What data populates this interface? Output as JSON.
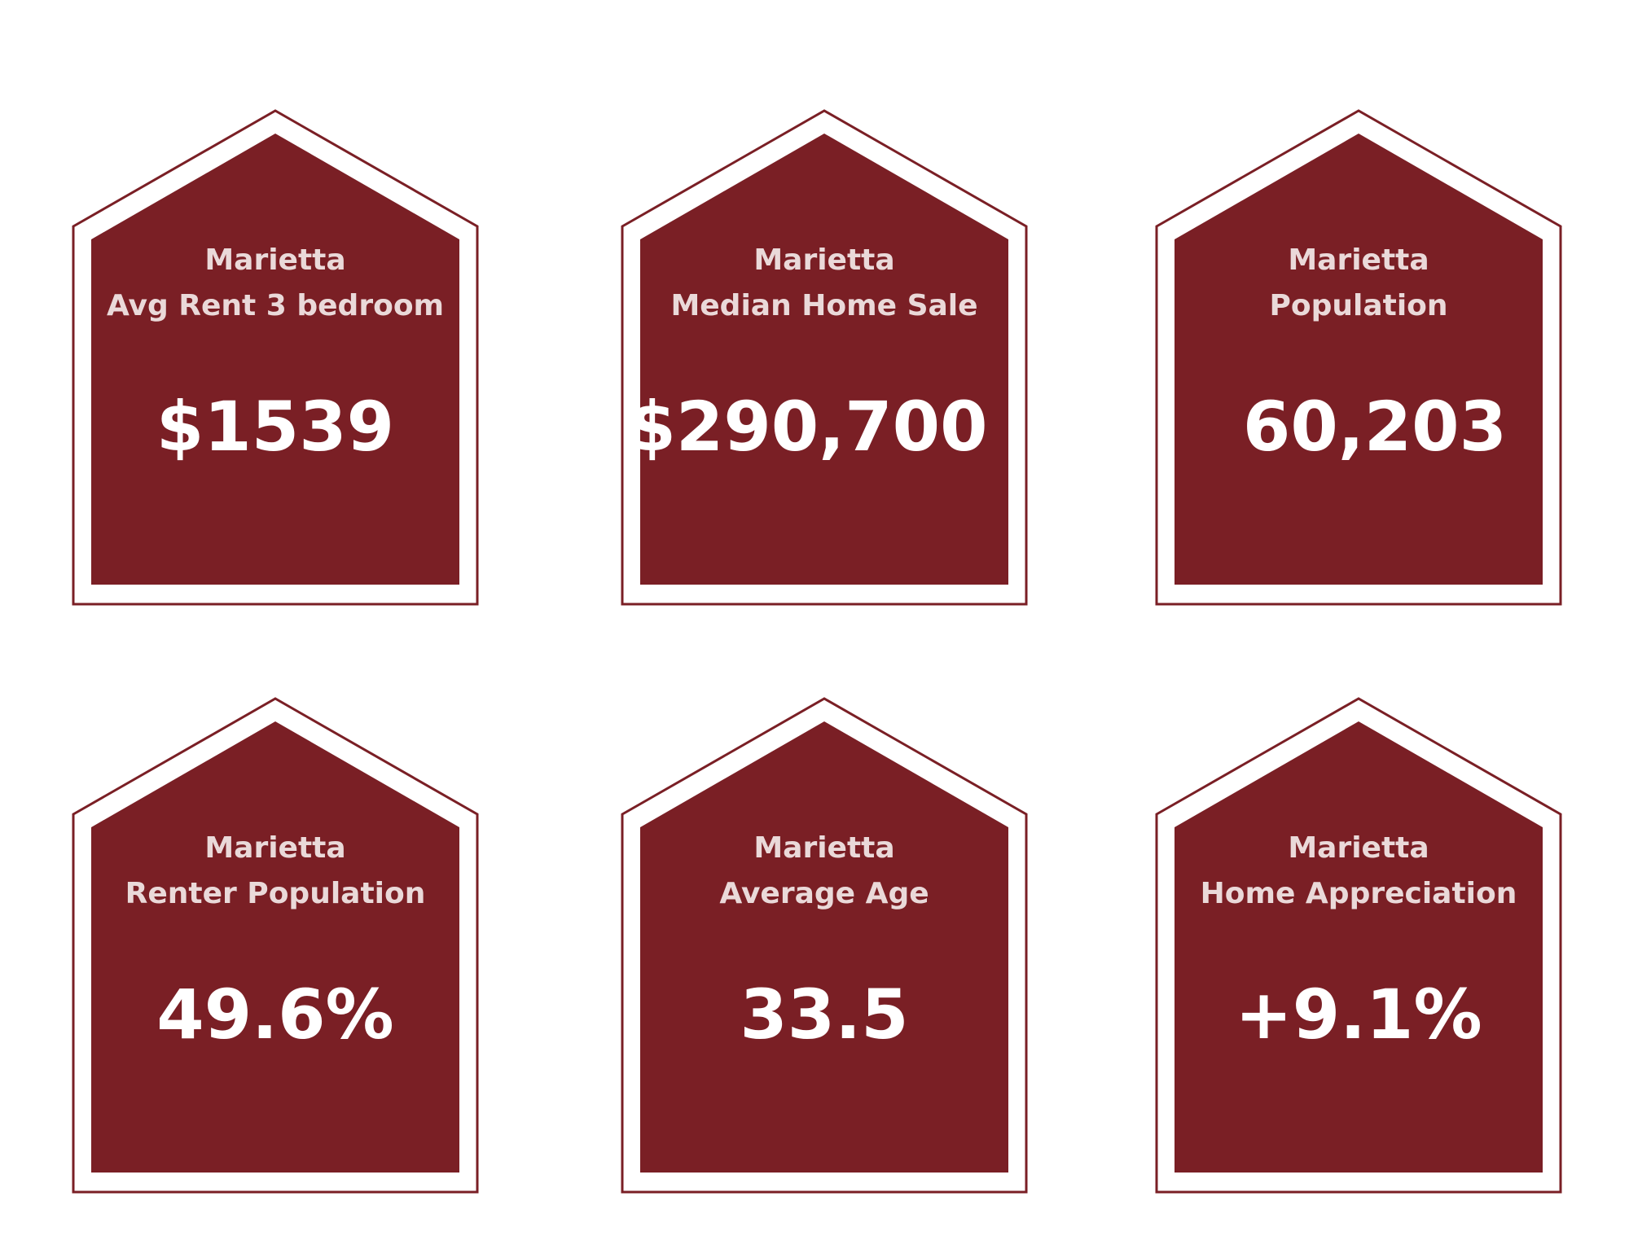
{
  "colors": {
    "house_fill": "#7a1f25",
    "house_outline": "#7a1f25",
    "label_text": "#ead9d9",
    "value_text": "#ffffff",
    "background": "#ffffff"
  },
  "cards": [
    {
      "city": "Marietta",
      "metric": "Avg Rent 3 bedroom",
      "value": "$1539"
    },
    {
      "city": "Marietta",
      "metric": "Median Home Sale",
      "value": "$290,700"
    },
    {
      "city": "Marietta",
      "metric": "Population",
      "value": "60,203"
    },
    {
      "city": "Marietta",
      "metric": "Renter Population",
      "value": "49.6%"
    },
    {
      "city": "Marietta",
      "metric": "Average Age",
      "value": "33.5"
    },
    {
      "city": "Marietta",
      "metric": "Home Appreciation",
      "value": "+9.1%"
    }
  ]
}
